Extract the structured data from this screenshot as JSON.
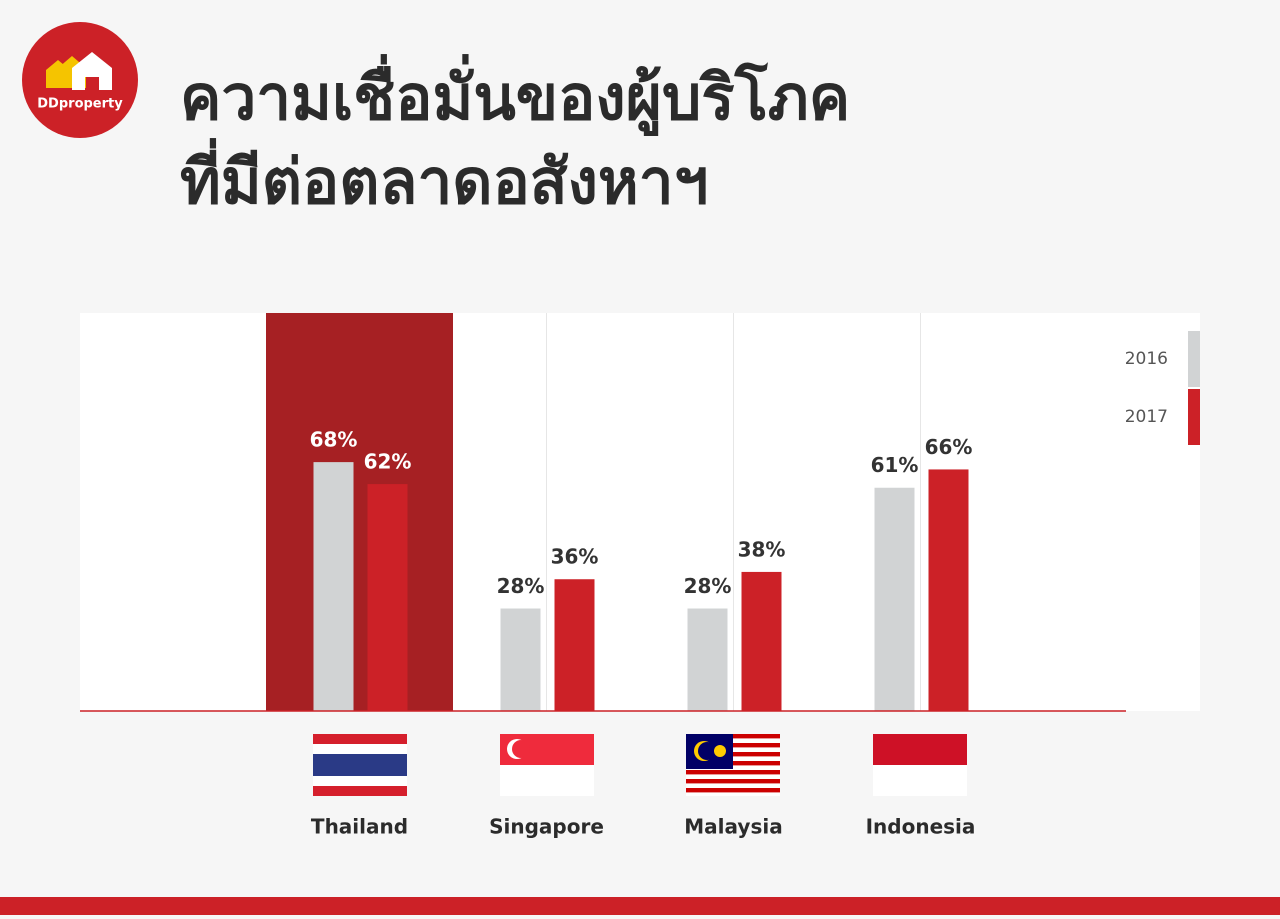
{
  "logo": "DDproperty",
  "chart_data": {
    "type": "bar",
    "title": [
      "ความเชื่อมั่นของผู้บริโภค",
      "ที่มีต่อตลาดอสังหาฯ"
    ],
    "categories": [
      "Thailand",
      "Singapore",
      "Malaysia",
      "Indonesia"
    ],
    "highlight": 0,
    "series": [
      {
        "name": "2016",
        "color": "#d1d3d4",
        "values": [
          68,
          28,
          28,
          61
        ],
        "value_labels": [
          "68%",
          "28%",
          "28%",
          "61%"
        ]
      },
      {
        "name": "2017",
        "color": "#cc2127",
        "values": [
          62,
          36,
          38,
          66
        ],
        "value_labels": [
          "62%",
          "36%",
          "38%",
          "66%"
        ]
      }
    ]
  }
}
